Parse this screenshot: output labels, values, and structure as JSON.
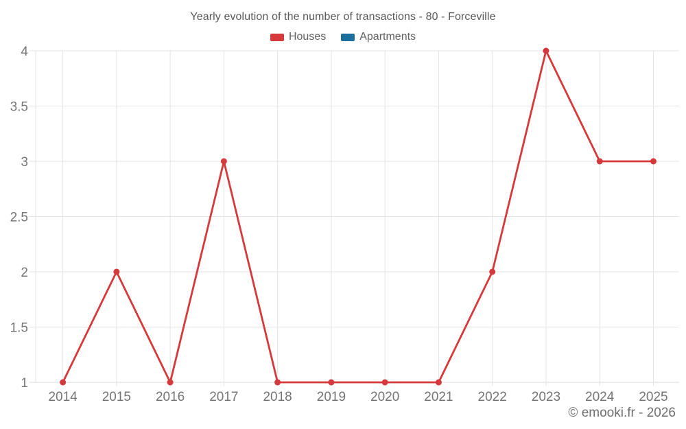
{
  "header": {
    "title": "Yearly evolution of the number of transactions - 80 - Forceville"
  },
  "legend": {
    "items": [
      {
        "label": "Houses",
        "color": "#d5393b"
      },
      {
        "label": "Apartments",
        "color": "#1a6f9e"
      }
    ]
  },
  "footer": {
    "copyright": "© emooki.fr - 2026"
  },
  "colors": {
    "houses_series": "#d5393b",
    "apartments_series": "#1a6f9e",
    "gridline": "#e3e3e3",
    "axis_line": "#d9d9d9",
    "axis_text": "#757575"
  },
  "chart_data": {
    "type": "line",
    "title": "Yearly evolution of the number of transactions - 80 - Forceville",
    "x": [
      2014,
      2015,
      2016,
      2017,
      2018,
      2019,
      2020,
      2021,
      2022,
      2023,
      2024,
      2025
    ],
    "series": [
      {
        "name": "Houses",
        "color": "#d5393b",
        "values": [
          1,
          2,
          1,
          3,
          1,
          1,
          1,
          1,
          2,
          4,
          3,
          3
        ]
      },
      {
        "name": "Apartments",
        "color": "#1a6f9e",
        "values": []
      }
    ],
    "xlabel": "",
    "ylabel": "",
    "yticks": [
      1,
      1.5,
      2,
      2.5,
      3,
      3.5,
      4
    ],
    "ylim": [
      1,
      4
    ],
    "grid": true,
    "legend_position": "top"
  }
}
